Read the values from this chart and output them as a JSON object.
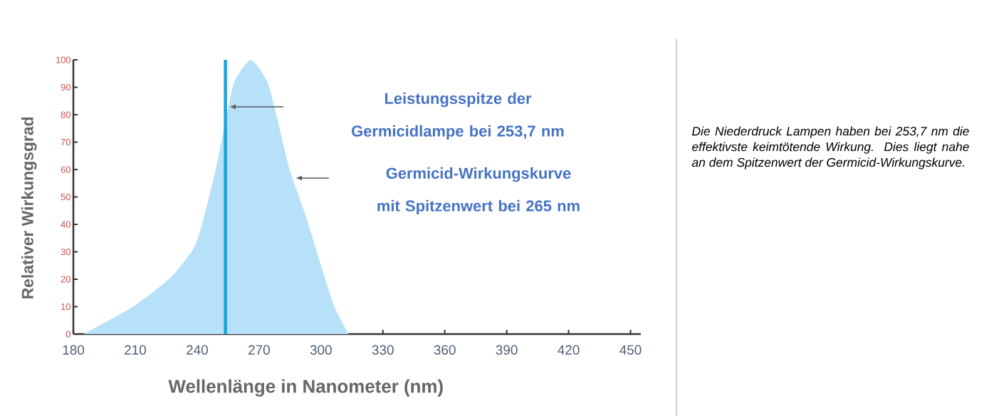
{
  "chart_data": {
    "type": "area",
    "xlabel": "Wellenlänge in Nanometer (nm)",
    "ylabel": "Relativer  Wirkungsgrad",
    "x": [
      185,
      209,
      227,
      238.6,
      243.4,
      249,
      253.8,
      258,
      266,
      274,
      279,
      284.8,
      292.7,
      299.6,
      306.5,
      313.4
    ],
    "values": [
      0,
      10,
      20.5,
      31.7,
      43,
      60,
      77.7,
      92,
      100,
      92,
      78,
      60,
      43,
      26,
      10,
      0
    ],
    "color": "#b6e1f8",
    "xlim": [
      180,
      455
    ],
    "xticks": [
      180,
      210,
      240,
      270,
      300,
      330,
      360,
      390,
      420,
      450
    ],
    "ylim": [
      0,
      100
    ],
    "yticks": [
      0,
      10,
      20,
      30,
      40,
      50,
      60,
      70,
      80,
      90,
      100
    ],
    "grid": false,
    "ref_lines": [
      {
        "axis": "x",
        "value": 253.7,
        "color": "#1fa3dd"
      }
    ],
    "annotations": [
      "Leistungsspitze der Germicidlampe bei 253,7 nm",
      "Germicid-Wirkungskurve mit Spitzenwert bei 265 nm",
      "Die Niederdruck Lampen haben bei 253,7 nm die effektivste keimtötende Wirkung. Dies liegt nahe an dem Spitzenwert der Germicid-Wirkungskurve."
    ]
  }
}
